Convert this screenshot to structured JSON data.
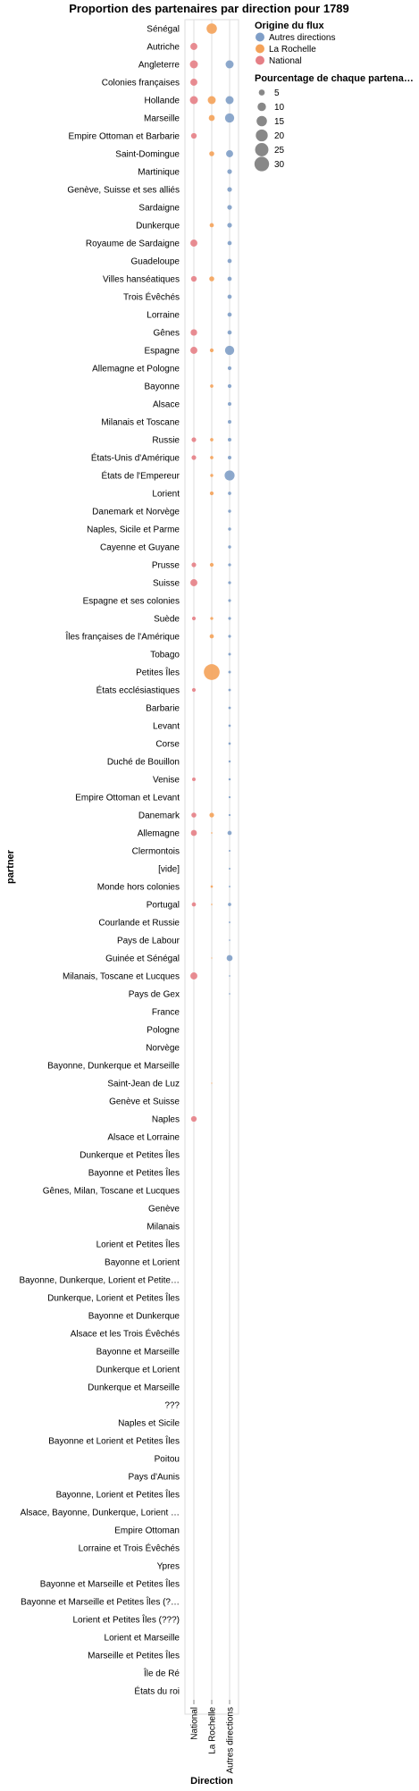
{
  "chart_data": {
    "type": "scatter",
    "title": "Proportion des partenaires par direction pour 1789",
    "xlabel": "Direction",
    "ylabel": "partner",
    "x_categories": [
      "National",
      "La Rochelle",
      "Autres directions"
    ],
    "y_categories": [
      "Sénégal",
      "Autriche",
      "Angleterre",
      "Colonies françaises",
      "Hollande",
      "Marseille",
      "Empire Ottoman et Barbarie",
      "Saint-Domingue",
      "Martinique",
      "Genève, Suisse et ses alliés",
      "Sardaigne",
      "Dunkerque",
      "Royaume de Sardaigne",
      "Guadeloupe",
      "Villes hanséatiques",
      "Trois Évêchés",
      "Lorraine",
      "Gênes",
      "Espagne",
      "Allemagne et Pologne",
      "Bayonne",
      "Alsace",
      "Milanais et Toscane",
      "Russie",
      "États-Unis d'Amérique",
      "États de l'Empereur",
      "Lorient",
      "Danemark et Norvège",
      "Naples, Sicile et Parme",
      "Cayenne et Guyane",
      "Prusse",
      "Suisse",
      "Espagne et ses colonies",
      "Suède",
      "Îles françaises de l'Amérique",
      "Tobago",
      "Petites Îles",
      "États ecclésiastiques",
      "Barbarie",
      "Levant",
      "Corse",
      "Duché de Bouillon",
      "Venise",
      "Empire Ottoman et Levant",
      "Danemark",
      "Allemagne",
      "Clermontois",
      "[vide]",
      "Monde hors colonies",
      "Portugal",
      "Courlande et Russie",
      "Pays de Labour",
      "Guinée et Sénégal",
      "Milanais, Toscane et Lucques",
      "Pays de Gex",
      "France",
      "Pologne",
      "Norvège",
      "Bayonne, Dunkerque et Marseille",
      "Saint-Jean de Luz",
      "Genève et Suisse",
      "Naples",
      "Alsace et Lorraine",
      "Dunkerque et Petites Îles",
      "Bayonne et Petites Îles",
      "Gênes, Milan, Toscane et Lucques",
      "Genève",
      "Milanais",
      "Lorient et Petites Îles",
      "Bayonne et Lorient",
      "Bayonne, Dunkerque, Lorient et Petite…",
      "Dunkerque, Lorient et Petites Îles",
      "Bayonne et Dunkerque",
      "Alsace et les Trois Évêchés",
      "Bayonne et Marseille",
      "Dunkerque et Lorient",
      "Dunkerque et Marseille",
      "???",
      "Naples et Sicile",
      "Bayonne et Lorient et Petites Îles",
      "Poitou",
      "Pays d'Aunis",
      "Bayonne, Lorient et Petites Îles",
      "Alsace, Bayonne, Dunkerque, Lorient …",
      "Empire Ottoman",
      "Lorraine et Trois Évêchés",
      "Ypres",
      "Bayonne et Marseille et Petites Îles",
      "Bayonne et Marseille et Petites Îles (?…",
      "Lorient et Petites Îles (???)",
      "Lorient et Marseille",
      "Marseille et Petites Îles",
      "Île de Ré",
      "États du roi"
    ],
    "series": [
      {
        "name": "Autres directions",
        "color": "#7f9ec7",
        "points": [
          {
            "y": "Angleterre",
            "value": 9
          },
          {
            "y": "Hollande",
            "value": 9
          },
          {
            "y": "Marseille",
            "value": 12
          },
          {
            "y": "Saint-Domingue",
            "value": 7
          },
          {
            "y": "Martinique",
            "value": 3
          },
          {
            "y": "Genève, Suisse et ses alliés",
            "value": 3
          },
          {
            "y": "Sardaigne",
            "value": 3
          },
          {
            "y": "Dunkerque",
            "value": 3
          },
          {
            "y": "Royaume de Sardaigne",
            "value": 2.5
          },
          {
            "y": "Guadeloupe",
            "value": 2.5
          },
          {
            "y": "Villes hanséatiques",
            "value": 2.5
          },
          {
            "y": "Trois Évêchés",
            "value": 2.5
          },
          {
            "y": "Lorraine",
            "value": 2.5
          },
          {
            "y": "Gênes",
            "value": 2.5
          },
          {
            "y": "Espagne",
            "value": 12
          },
          {
            "y": "Allemagne et Pologne",
            "value": 2
          },
          {
            "y": "Bayonne",
            "value": 2
          },
          {
            "y": "Alsace",
            "value": 1.8
          },
          {
            "y": "Milanais et Toscane",
            "value": 1.8
          },
          {
            "y": "Russie",
            "value": 1.8
          },
          {
            "y": "États-Unis d'Amérique",
            "value": 1.8
          },
          {
            "y": "États de l'Empereur",
            "value": 14
          },
          {
            "y": "Lorient",
            "value": 1.5
          },
          {
            "y": "Danemark et Norvège",
            "value": 1.3
          },
          {
            "y": "Naples, Sicile et Parme",
            "value": 1.3
          },
          {
            "y": "Cayenne et Guyane",
            "value": 1.3
          },
          {
            "y": "Prusse",
            "value": 1.2
          },
          {
            "y": "Suisse",
            "value": 1.2
          },
          {
            "y": "Espagne et ses colonies",
            "value": 1.1
          },
          {
            "y": "Suède",
            "value": 1.1
          },
          {
            "y": "Îles françaises de l'Amérique",
            "value": 1.1
          },
          {
            "y": "Tobago",
            "value": 1
          },
          {
            "y": "Petites Îles",
            "value": 1
          },
          {
            "y": "États ecclésiastiques",
            "value": 0.9
          },
          {
            "y": "Barbarie",
            "value": 0.9
          },
          {
            "y": "Levant",
            "value": 0.8
          },
          {
            "y": "Corse",
            "value": 0.8
          },
          {
            "y": "Duché de Bouillon",
            "value": 0.7
          },
          {
            "y": "Venise",
            "value": 0.7
          },
          {
            "y": "Empire Ottoman et Levant",
            "value": 0.6
          },
          {
            "y": "Danemark",
            "value": 0.6
          },
          {
            "y": "Allemagne",
            "value": 2.5
          },
          {
            "y": "Clermontois",
            "value": 0.5
          },
          {
            "y": "[vide]",
            "value": 0.5
          },
          {
            "y": "Monde hors colonies",
            "value": 0.4
          },
          {
            "y": "Portugal",
            "value": 1.5
          },
          {
            "y": "Courlande et Russie",
            "value": 0.4
          },
          {
            "y": "Pays de Labour",
            "value": 0.3
          },
          {
            "y": "Guinée et Sénégal",
            "value": 5
          },
          {
            "y": "Milanais, Toscane et Lucques",
            "value": 0.3
          },
          {
            "y": "Pays de Gex",
            "value": 0.3
          }
        ]
      },
      {
        "name": "La Rochelle",
        "color": "#f4a259",
        "points": [
          {
            "y": "Sénégal",
            "value": 15
          },
          {
            "y": "Hollande",
            "value": 9
          },
          {
            "y": "Marseille",
            "value": 5
          },
          {
            "y": "Saint-Domingue",
            "value": 3.5
          },
          {
            "y": "Dunkerque",
            "value": 2.5
          },
          {
            "y": "Villes hanséatiques",
            "value": 3.5
          },
          {
            "y": "Espagne",
            "value": 2
          },
          {
            "y": "Bayonne",
            "value": 1.5
          },
          {
            "y": "Russie",
            "value": 1.5
          },
          {
            "y": "États-Unis d'Amérique",
            "value": 1.5
          },
          {
            "y": "États de l'Empereur",
            "value": 1.3
          },
          {
            "y": "Lorient",
            "value": 2
          },
          {
            "y": "Prusse",
            "value": 2
          },
          {
            "y": "Suède",
            "value": 1.2
          },
          {
            "y": "Îles françaises de l'Amérique",
            "value": 2.5
          },
          {
            "y": "Petites Îles",
            "value": 35
          },
          {
            "y": "Danemark",
            "value": 3
          },
          {
            "y": "Allemagne",
            "value": 0.3
          },
          {
            "y": "Monde hors colonies",
            "value": 0.8
          },
          {
            "y": "Portugal",
            "value": 0.3
          },
          {
            "y": "Guinée et Sénégal",
            "value": 0.2
          },
          {
            "y": "Saint-Jean de Luz",
            "value": 0.2
          }
        ]
      },
      {
        "name": "National",
        "color": "#e57f86",
        "points": [
          {
            "y": "Autriche",
            "value": 7
          },
          {
            "y": "Angleterre",
            "value": 9
          },
          {
            "y": "Colonies françaises",
            "value": 7
          },
          {
            "y": "Hollande",
            "value": 9
          },
          {
            "y": "Empire Ottoman et Barbarie",
            "value": 4.5
          },
          {
            "y": "Royaume de Sardaigne",
            "value": 7
          },
          {
            "y": "Villes hanséatiques",
            "value": 4.5
          },
          {
            "y": "Gênes",
            "value": 6
          },
          {
            "y": "Espagne",
            "value": 7
          },
          {
            "y": "Russie",
            "value": 3
          },
          {
            "y": "États-Unis d'Amérique",
            "value": 3
          },
          {
            "y": "Prusse",
            "value": 3
          },
          {
            "y": "Suisse",
            "value": 7
          },
          {
            "y": "Suède",
            "value": 2
          },
          {
            "y": "États ecclésiastiques",
            "value": 2
          },
          {
            "y": "Venise",
            "value": 1.8
          },
          {
            "y": "Danemark",
            "value": 3.5
          },
          {
            "y": "Allemagne",
            "value": 5
          },
          {
            "y": "Portugal",
            "value": 2.5
          },
          {
            "y": "Milanais, Toscane et Lucques",
            "value": 7
          },
          {
            "y": "Naples",
            "value": 4.5
          }
        ]
      }
    ],
    "legend": {
      "color_title": "Origine du flux",
      "color_entries": [
        "Autres directions",
        "La Rochelle",
        "National"
      ],
      "size_title": "Pourcentage de chaque partena…",
      "size_entries": [
        5,
        10,
        15,
        20,
        25,
        30
      ],
      "placement": "right"
    }
  }
}
